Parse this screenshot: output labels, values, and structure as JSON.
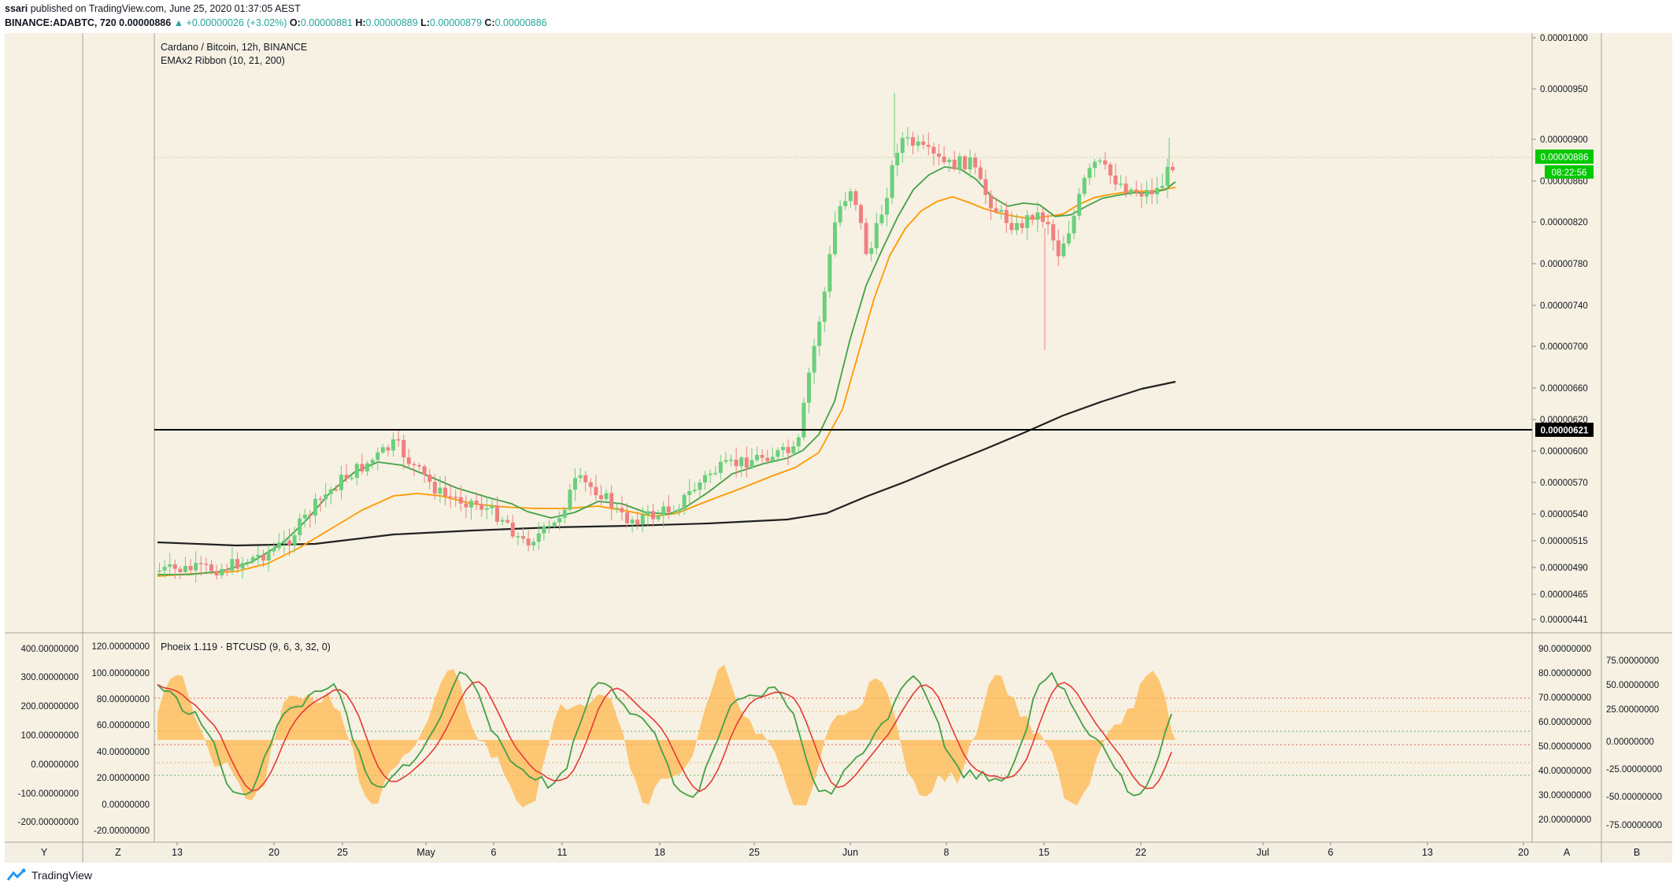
{
  "header": {
    "publisher": "ssari",
    "published_text": "published on TradingView.com, June 25, 2020 01:37:05 AEST",
    "symbol": "BINANCE:ADABTC, 720",
    "last": "0.00000886",
    "change": "▲ +0.00000026 (+3.02%)",
    "o_label": "O:",
    "o_value": "0.00000881",
    "h_label": "H:",
    "h_value": "0.00000889",
    "l_label": "L:",
    "l_value": "0.00000879",
    "c_label": "C:",
    "c_value": "0.00000886"
  },
  "main_pane": {
    "title": "Cardano / Bitcoin, 12h, BINANCE",
    "indicator": "EMAx2 Ribbon (10, 21, 200)",
    "price_ticks": [
      "0.00001000",
      "0.00000950",
      "0.00000900",
      "0.00000860",
      "0.00000820",
      "0.00000780",
      "0.00000740",
      "0.00000700",
      "0.00000660",
      "0.00000620",
      "0.00000600",
      "0.00000570",
      "0.00000540",
      "0.00000515",
      "0.00000490",
      "0.00000465",
      "0.00000441"
    ],
    "last_price_badge": "0.00000886",
    "countdown_badge": "08:22:56",
    "horizontal_line_badge": "0.00000621"
  },
  "osc_pane": {
    "title": "Phoeix 1.119 · BTCUSD (9, 6, 3, 32, 0)",
    "left_outer_ticks": [
      "400.00000000",
      "300.00000000",
      "200.00000000",
      "100.00000000",
      "0.00000000",
      "-100.00000000",
      "-200.00000000"
    ],
    "left_inner_ticks": [
      "120.00000000",
      "100.00000000",
      "80.00000000",
      "60.00000000",
      "40.00000000",
      "20.00000000",
      "0.00000000",
      "-20.00000000"
    ],
    "right_inner_ticks": [
      "90.00000000",
      "80.00000000",
      "70.00000000",
      "60.00000000",
      "50.00000000",
      "40.00000000",
      "30.00000000",
      "20.00000000"
    ],
    "right_outer_ticks": [
      "75.00000000",
      "50.00000000",
      "25.00000000",
      "0.00000000",
      "-25.00000000",
      "-50.00000000",
      "-75.00000000"
    ]
  },
  "time_axis": {
    "labels": [
      "13",
      "20",
      "25",
      "May",
      "6",
      "11",
      "18",
      "25",
      "Jun",
      "8",
      "15",
      "22",
      "Jul",
      "6",
      "13",
      "20"
    ],
    "scale_buttons": [
      "Y",
      "Z",
      "A",
      "B"
    ]
  },
  "colors": {
    "background": "#f6f1e2",
    "up": "#6bcf7c",
    "down": "#f08080",
    "ema_fast": "#43a047",
    "ema_mid": "#ff9800",
    "ema_slow": "#212121",
    "osc_fill": "#ffb74d",
    "osc_red": "#e53935",
    "badge_green": "#00c800"
  },
  "footer": {
    "brand": "TradingView"
  }
}
